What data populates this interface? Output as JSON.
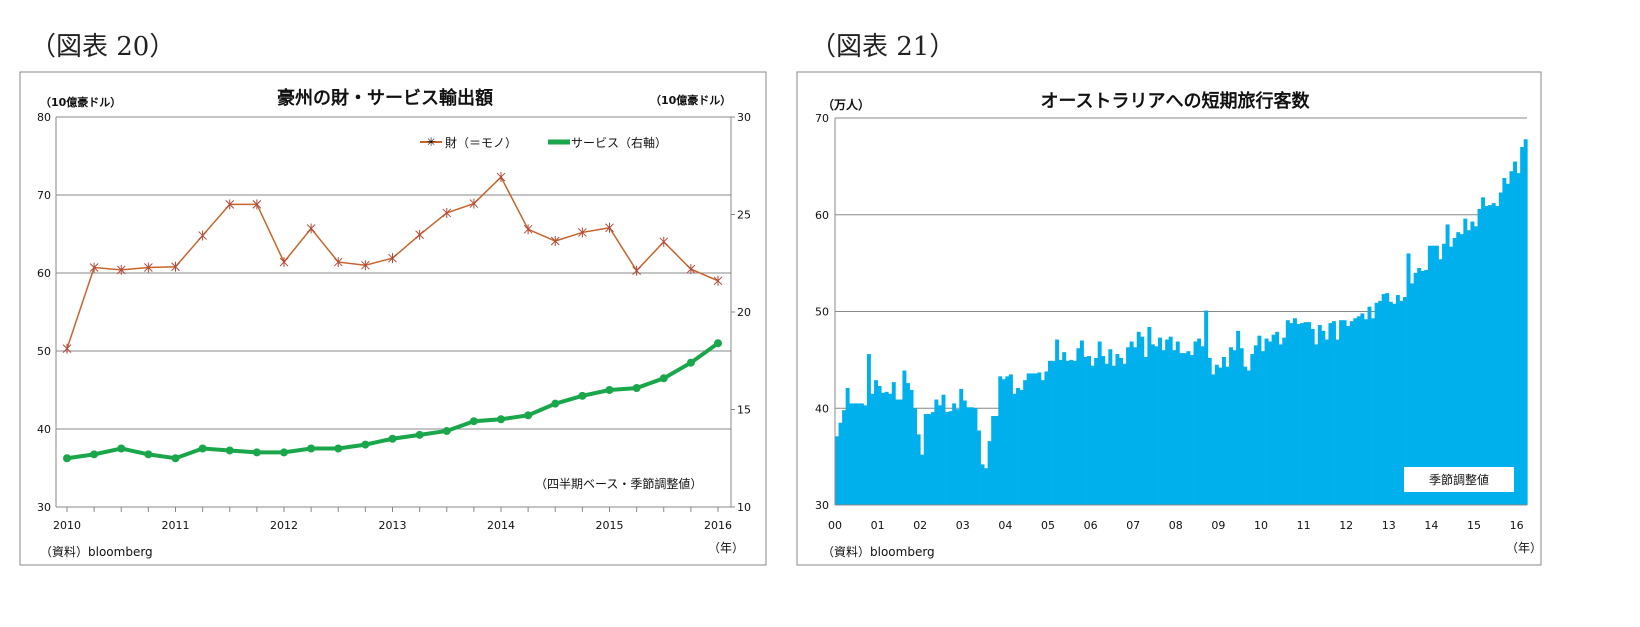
{
  "figures": [
    {
      "label": "（図表 20）"
    },
    {
      "label": "（図表 21）"
    }
  ],
  "chart_data": [
    {
      "type": "line",
      "title": "豪州の財・サービス輸出額",
      "ylabel": "（10億豪ドル）",
      "y2label": "（10億豪ドル）",
      "xlabel": "（年）",
      "note": "（四半期ベース・季節調整値）",
      "source": "（資料）bloomberg",
      "ylim": [
        30,
        80
      ],
      "y2lim": [
        10,
        30
      ],
      "yticks": [
        "30",
        "40",
        "50",
        "60",
        "70",
        "80"
      ],
      "y2ticks": [
        "10",
        "15",
        "20",
        "25",
        "30"
      ],
      "xticks": [
        "2010",
        "2011",
        "2012",
        "2013",
        "2014",
        "2015",
        "2016"
      ],
      "grid": true,
      "legend": "top-right",
      "x_start": "2010Q1",
      "x_end": "2016Q1",
      "series": [
        {
          "name": "財（＝モノ）",
          "axis": "left",
          "color": "#c8642a",
          "marker": "star",
          "values": [
            50.3,
            60.7,
            60.4,
            60.7,
            60.8,
            64.8,
            68.8,
            68.8,
            61.4,
            65.7,
            61.4,
            61.0,
            61.9,
            64.9,
            67.7,
            68.9,
            72.3,
            65.6,
            64.1,
            65.2,
            65.8,
            60.3,
            64.0,
            60.5,
            59.0
          ]
        },
        {
          "name": "サービス（右軸）",
          "axis": "right",
          "color": "#1aa64a",
          "marker": "circle",
          "values": [
            12.5,
            12.7,
            13.0,
            12.7,
            12.5,
            13.0,
            12.9,
            12.8,
            12.8,
            13.0,
            13.0,
            13.2,
            13.5,
            13.7,
            13.9,
            14.4,
            14.5,
            14.7,
            15.3,
            15.7,
            16.0,
            16.1,
            16.6,
            17.4,
            18.4
          ]
        }
      ]
    },
    {
      "type": "bar",
      "title": "オーストラリアへの短期旅行客数",
      "ylabel": "（万人）",
      "xlabel": "（年）",
      "legend_text": "季節調整値",
      "source": "（資料）bloomberg",
      "ylim": [
        30,
        70
      ],
      "yticks": [
        "30",
        "40",
        "50",
        "60",
        "70"
      ],
      "xticks": [
        "00",
        "01",
        "02",
        "03",
        "04",
        "05",
        "06",
        "07",
        "08",
        "09",
        "10",
        "11",
        "12",
        "13",
        "14",
        "15",
        "16"
      ],
      "grid": true,
      "color": "#00b0ec",
      "frequency": "monthly",
      "x_start": "2000-01",
      "values": [
        37.1,
        38.5,
        39.8,
        42.1,
        40.5,
        40.5,
        40.5,
        40.5,
        40.3,
        45.6,
        41.5,
        42.9,
        42.3,
        41.6,
        41.7,
        41.5,
        42.7,
        40.9,
        40.9,
        43.9,
        42.6,
        41.9,
        40.0,
        37.3,
        35.2,
        39.4,
        39.4,
        39.6,
        40.9,
        40.3,
        41.4,
        39.6,
        39.7,
        40.5,
        39.9,
        42.0,
        40.8,
        40.1,
        40.1,
        40.0,
        37.7,
        34.2,
        33.8,
        36.6,
        39.2,
        39.2,
        43.3,
        43.0,
        43.3,
        43.5,
        41.5,
        42.1,
        41.9,
        42.9,
        43.6,
        43.6,
        43.6,
        43.7,
        42.9,
        43.8,
        44.9,
        44.9,
        47.1,
        45.0,
        45.8,
        44.9,
        45.0,
        44.9,
        46.2,
        47.0,
        45.3,
        45.4,
        44.4,
        45.2,
        46.9,
        45.4,
        44.6,
        46.1,
        44.4,
        45.6,
        45.2,
        44.6,
        46.3,
        46.9,
        46.3,
        47.9,
        47.4,
        45.3,
        48.4,
        46.6,
        46.4,
        47.3,
        46.0,
        47.1,
        47.4,
        46.0,
        46.9,
        45.7,
        45.7,
        45.9,
        45.5,
        46.9,
        47.2,
        46.4,
        50.1,
        45.2,
        43.5,
        44.5,
        44.2,
        45.3,
        44.3,
        46.3,
        46.0,
        48.0,
        46.2,
        44.3,
        43.9,
        45.6,
        46.5,
        47.5,
        45.9,
        47.2,
        46.9,
        47.6,
        47.9,
        46.6,
        47.3,
        49.1,
        48.8,
        49.3,
        48.7,
        48.8,
        48.9,
        48.9,
        48.2,
        46.6,
        48.6,
        48.0,
        47.1,
        48.8,
        49.0,
        47.1,
        49.1,
        49.1,
        48.5,
        49.0,
        49.3,
        49.5,
        49.8,
        49.2,
        50.5,
        49.3,
        50.9,
        51.1,
        51.8,
        51.9,
        51.0,
        50.8,
        51.7,
        51.1,
        51.5,
        56.0,
        52.9,
        54.0,
        54.5,
        54.2,
        54.3,
        56.8,
        56.8,
        56.8,
        55.4,
        57.0,
        59.0,
        56.7,
        57.6,
        58.2,
        58.0,
        59.6,
        58.4,
        59.3,
        58.8,
        60.6,
        61.8,
        60.9,
        61.0,
        61.2,
        60.9,
        62.3,
        63.8,
        63.2,
        64.5,
        65.5,
        64.3,
        67.0,
        67.8
      ]
    }
  ]
}
